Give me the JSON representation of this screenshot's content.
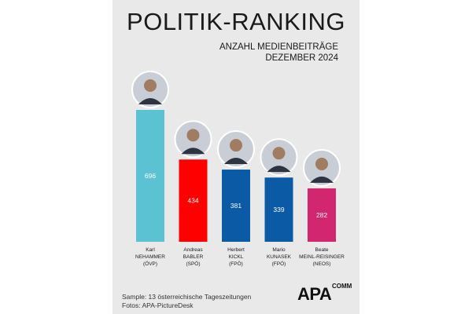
{
  "chart_data": {
    "type": "bar",
    "title": "POLITIK-RANKING",
    "subtitle_lines": [
      "ANZAHL MEDIENBEITRÄGE",
      "DEZEMBER 2024"
    ],
    "categories": [
      {
        "first": "Karl",
        "last": "NEHAMMER",
        "party": "(ÖVP)"
      },
      {
        "first": "Andreas",
        "last": "BABLER",
        "party": "(SPÖ)"
      },
      {
        "first": "Herbert",
        "last": "KICKL",
        "party": "(FPÖ)"
      },
      {
        "first": "Mario",
        "last": "KUNASEK",
        "party": "(FPÖ)"
      },
      {
        "first": "Beate",
        "last": "MEINL-REISINGER",
        "party": "(NEOS)"
      }
    ],
    "values": [
      696,
      434,
      381,
      339,
      282
    ],
    "colors": [
      "#5bc2d3",
      "#ff0000",
      "#0a5aa6",
      "#0a5aa6",
      "#d2266f"
    ],
    "ylim": [
      0,
      696
    ]
  },
  "footer": {
    "sample": "Sample: 13 österreichische Tageszeitungen",
    "photos": "Fotos: APA-PictureDesk"
  },
  "logo": {
    "main": "APA",
    "small": "COMM"
  }
}
